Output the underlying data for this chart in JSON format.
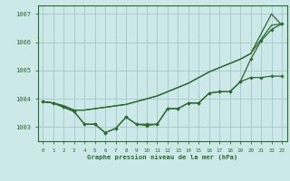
{
  "background_color": "#cce8e8",
  "grid_color": "#aacccc",
  "line_color": "#2d6a2d",
  "x_ticks": [
    0,
    1,
    2,
    3,
    4,
    5,
    6,
    7,
    8,
    9,
    10,
    11,
    12,
    13,
    14,
    15,
    16,
    17,
    18,
    19,
    20,
    21,
    22,
    23
  ],
  "ylim": [
    1002.5,
    1007.3
  ],
  "yticks": [
    1003,
    1004,
    1005,
    1006,
    1007
  ],
  "xlabel": "Graphe pression niveau de la mer (hPa)",
  "series_no_marker": [
    [
      1003.9,
      1003.85,
      1003.75,
      1003.6,
      1003.6,
      1003.65,
      1003.7,
      1003.75,
      1003.8,
      1003.9,
      1004.0,
      1004.1,
      1004.25,
      1004.4,
      1004.55,
      1004.75,
      1004.95,
      1005.1,
      1005.25,
      1005.4,
      1005.6,
      1006.1,
      1006.6,
      1006.65
    ],
    [
      1003.9,
      1003.85,
      1003.75,
      1003.6,
      1003.6,
      1003.65,
      1003.7,
      1003.75,
      1003.8,
      1003.9,
      1004.0,
      1004.1,
      1004.25,
      1004.4,
      1004.55,
      1004.75,
      1004.95,
      1005.1,
      1005.25,
      1005.4,
      1005.6,
      1006.3,
      1007.0,
      1006.6
    ]
  ],
  "series_with_marker": [
    [
      1003.9,
      1003.85,
      1003.7,
      1003.55,
      1003.1,
      1003.1,
      1002.8,
      1002.95,
      1003.35,
      1003.1,
      1003.1,
      1003.1,
      1003.65,
      1003.65,
      1003.85,
      1003.85,
      1004.2,
      1004.25,
      1004.25,
      1004.6,
      1004.75,
      1004.75,
      1004.8,
      1004.8
    ],
    [
      1003.9,
      1003.85,
      1003.7,
      1003.55,
      1003.1,
      1003.1,
      1002.8,
      1002.95,
      1003.35,
      1003.1,
      1003.05,
      1003.1,
      1003.65,
      1003.65,
      1003.85,
      1003.85,
      1004.2,
      1004.25,
      1004.25,
      1004.6,
      1005.4,
      1006.05,
      1006.45,
      1006.65
    ]
  ]
}
